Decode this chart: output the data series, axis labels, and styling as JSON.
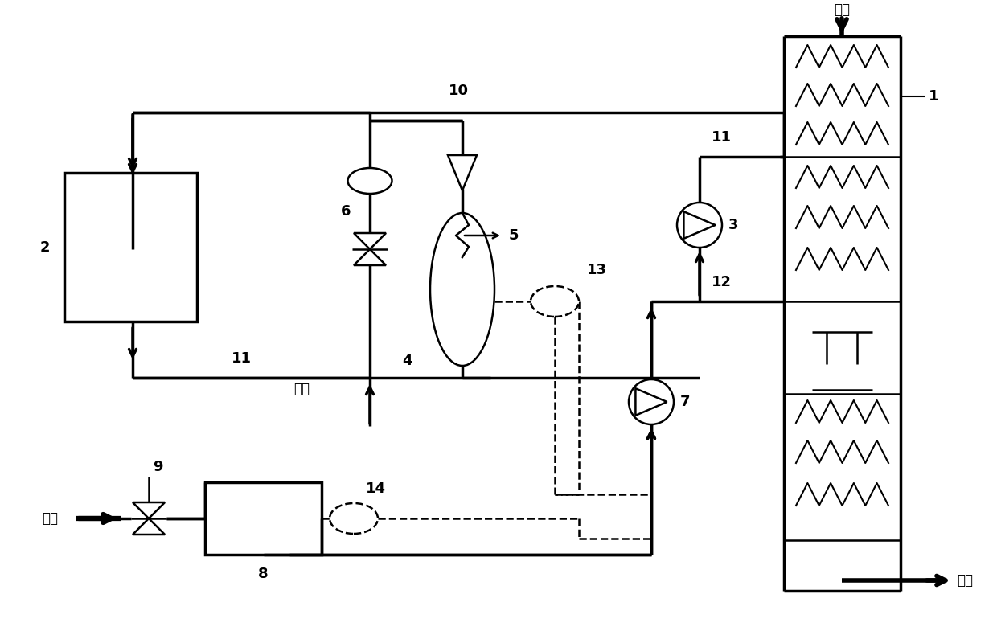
{
  "bg_color": "#ffffff",
  "lc": "#000000",
  "lw": 1.8,
  "lw_thick": 2.5,
  "fig_width": 12.4,
  "fig_height": 7.9,
  "labels": {
    "meiq_top": "煤气",
    "meiq_bottom": "煤气",
    "ruanshui": "软水",
    "danqi": "氮气",
    "1": "1",
    "2": "2",
    "3": "3",
    "4": "4",
    "5": "5",
    "6": "6",
    "7": "7",
    "8": "8",
    "9": "9",
    "10": "10",
    "11": "11",
    "12": "12",
    "13": "13",
    "14": "14"
  },
  "fontsize_label": 13,
  "fontsize_text": 12
}
